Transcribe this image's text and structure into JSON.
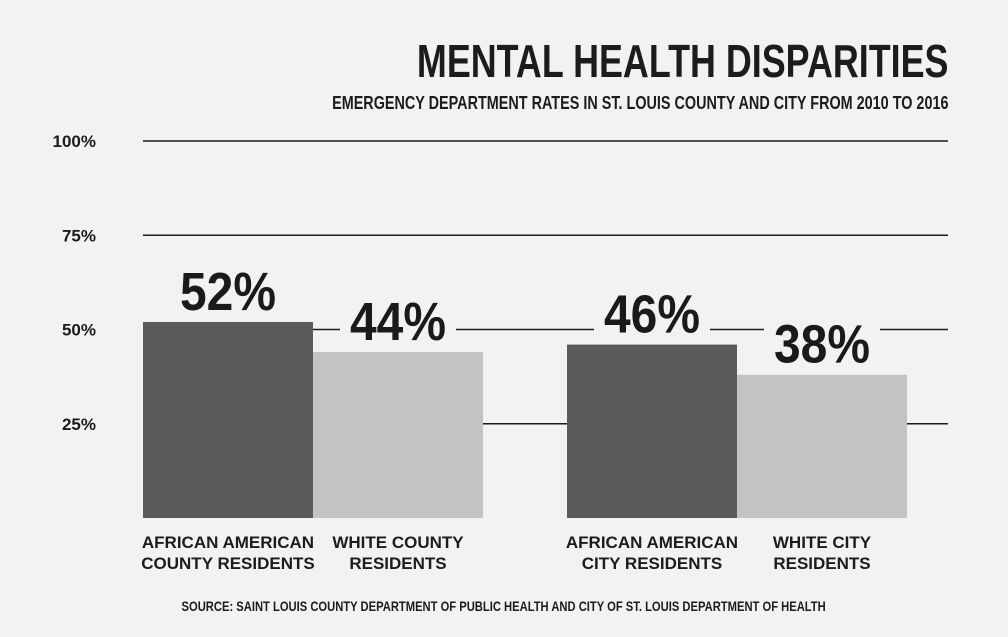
{
  "title": "MENTAL HEALTH DISPARITIES",
  "subtitle": "EMERGENCY DEPARTMENT RATES IN ST. LOUIS COUNTY AND CITY FROM 2010 TO 2016",
  "source": "SOURCE: SAINT LOUIS COUNTY DEPARTMENT OF PUBLIC HEALTH AND CITY OF ST. LOUIS DEPARTMENT OF HEALTH",
  "colors": {
    "dark_bar": "#5a5a5a",
    "light_bar": "#c3c3c3",
    "grid": "#1c1c1c",
    "background": "#f2f2f2"
  },
  "chart_data": {
    "type": "bar",
    "title": "MENTAL HEALTH DISPARITIES",
    "subtitle": "EMERGENCY DEPARTMENT RATES IN ST. LOUIS COUNTY AND CITY FROM 2010 TO 2016",
    "categories": [
      [
        "AFRICAN AMERICAN",
        "COUNTY RESIDENTS"
      ],
      [
        "WHITE COUNTY",
        "RESIDENTS"
      ],
      [
        "AFRICAN AMERICAN",
        "CITY RESIDENTS"
      ],
      [
        "WHITE CITY",
        "RESIDENTS"
      ]
    ],
    "values": [
      52,
      44,
      46,
      38
    ],
    "value_labels": [
      "52%",
      "44%",
      "46%",
      "38%"
    ],
    "bar_colors": [
      "#5a5a5a",
      "#c3c3c3",
      "#5a5a5a",
      "#c3c3c3"
    ],
    "ylim": [
      0,
      100
    ],
    "yticks": [
      25,
      50,
      75,
      100
    ],
    "ytick_labels": [
      "25%",
      "50%",
      "75%",
      "100%"
    ],
    "grid": true
  }
}
